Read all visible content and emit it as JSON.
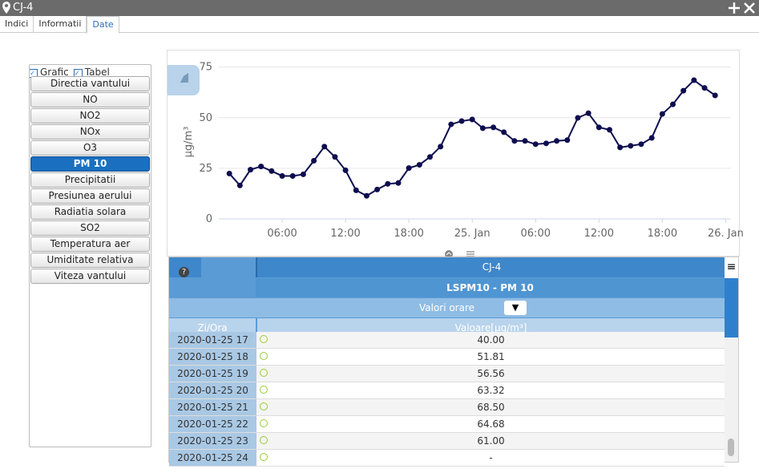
{
  "window": {
    "title": "CJ-4"
  },
  "tabs": [
    "Indici",
    "Informatii",
    "Date"
  ],
  "checkboxes": [
    "Grafic",
    "Tabel"
  ],
  "parameters": [
    "Directia vantului",
    "NO",
    "NO2",
    "NOx",
    "O3",
    "PM 10",
    "Precipitatii",
    "Presiunea aerului",
    "Radiatia solara",
    "SO2",
    "Temperatura aer",
    "Umiditate relativa",
    "Viteza vantului"
  ],
  "chart": {
    "type": "line",
    "y_label": "µg/m³",
    "color": "#0d0d4f",
    "grid": true,
    "x": [
      1,
      2,
      3,
      4,
      5,
      6,
      7,
      8,
      9,
      10,
      11,
      12,
      13,
      14,
      15,
      16,
      17,
      18,
      19,
      20,
      21,
      22,
      23,
      24,
      25,
      26,
      27,
      28,
      29,
      30,
      31,
      32,
      33,
      34,
      35,
      36,
      37,
      38,
      39,
      40,
      41,
      42,
      43,
      44,
      45,
      46,
      47
    ],
    "values": [
      22.4,
      16.5,
      24.3,
      25.9,
      23.6,
      21.2,
      21.2,
      22,
      28.7,
      35.7,
      30.6,
      24,
      14.1,
      11.4,
      14.5,
      17.3,
      17.7,
      25.1,
      26.7,
      30.6,
      35.7,
      46.7,
      48.3,
      49.1,
      44.8,
      45.2,
      42.8,
      38.5,
      38.5,
      36.9,
      37.3,
      38.5,
      38.9,
      49.9,
      52.2,
      45.2,
      44,
      35.3,
      36.1,
      36.9,
      40.0,
      51.81,
      56.56,
      63.32,
      68.5,
      64.68,
      61.0
    ],
    "xlim": [
      0,
      48.5
    ],
    "xticks": [
      {
        "value": 6,
        "label": "06:00"
      },
      {
        "value": 12,
        "label": "12:00"
      },
      {
        "value": 18,
        "label": "18:00"
      },
      {
        "value": 24,
        "label": "25. Jan"
      },
      {
        "value": 30,
        "label": "06:00"
      },
      {
        "value": 36,
        "label": "12:00"
      },
      {
        "value": 42,
        "label": "18:00"
      },
      {
        "value": 48,
        "label": "26. Jan"
      }
    ],
    "ylim": [
      0,
      80
    ],
    "yticks": [
      0,
      25,
      50,
      75
    ]
  },
  "table": {
    "title": "CJ-4",
    "subtitle": "LSPM10 - PM 10",
    "caption": "Valori orare",
    "columns": [
      "Zi/Ora",
      "Valoare[µg/m³]"
    ],
    "rows": [
      [
        "2020-01-25 17",
        "40.00"
      ],
      [
        "2020-01-25 18",
        "51.81"
      ],
      [
        "2020-01-25 19",
        "56.56"
      ],
      [
        "2020-01-25 20",
        "63.32"
      ],
      [
        "2020-01-25 21",
        "68.50"
      ],
      [
        "2020-01-25 22",
        "64.68"
      ],
      [
        "2020-01-25 23",
        "61.00"
      ],
      [
        "2020-01-25 24",
        "-"
      ]
    ]
  }
}
